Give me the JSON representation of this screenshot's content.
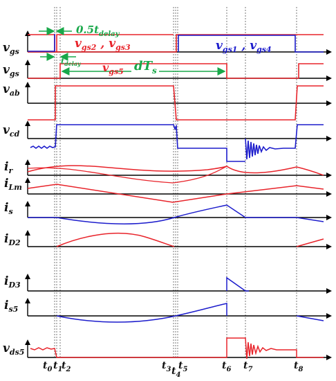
{
  "colors": {
    "red": "#e8232a",
    "blue": "#1c1ccc",
    "green": "#19a84a",
    "black": "#000000"
  },
  "signal_labels": {
    "vgs_a": "v",
    "vgs_a_sub": "gs",
    "vgs_b": "v",
    "vgs_b_sub": "gs",
    "vab": "v",
    "vab_sub": "ab",
    "vcd": "v",
    "vcd_sub": "cd",
    "ir": "i",
    "ir_sub": "r",
    "iLm": "i",
    "iLm_sub": "Lm",
    "is": "i",
    "is_sub": "s",
    "iD2": "i",
    "iD2_sub": "D2",
    "iD3": "i",
    "iD3_sub": "D3",
    "is5": "i",
    "is5_sub": "s5",
    "vds5": "v",
    "vds5_sub": "ds5"
  },
  "annotations": {
    "half_delay": "0.5t",
    "half_delay_sub": "delay",
    "delay": "t",
    "delay_sub": "delay",
    "duty": "dT",
    "duty_sub": "s",
    "gate23_a": "v",
    "gate23_a_sub": "gs2",
    "gate23_sep": " , ",
    "gate23_b": "v",
    "gate23_b_sub": "gs3",
    "gate14_a": "v",
    "gate14_a_sub": "gs1",
    "gate14_sep": " , ",
    "gate14_b": "v",
    "gate14_b_sub": "gs4",
    "gate5": "v",
    "gate5_sub": "gs5"
  },
  "time_labels": [
    {
      "t": "t",
      "sub": "0"
    },
    {
      "t": "t",
      "sub": "1"
    },
    {
      "t": "t",
      "sub": "2"
    },
    {
      "t": "t",
      "sub": "3"
    },
    {
      "t": "t",
      "sub": "4"
    },
    {
      "t": "t",
      "sub": "5"
    },
    {
      "t": "t",
      "sub": "6"
    },
    {
      "t": "t",
      "sub": "7"
    },
    {
      "t": "t",
      "sub": "8"
    }
  ]
}
